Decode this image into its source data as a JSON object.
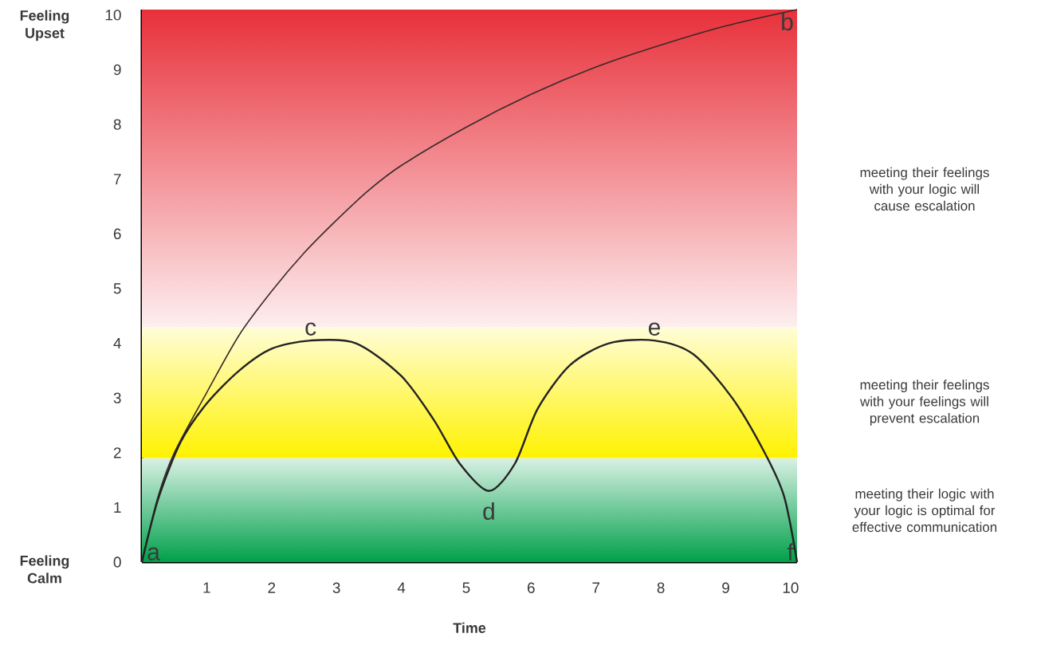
{
  "chart_data": {
    "type": "line",
    "xlabel": "Time",
    "xlim": [
      0,
      10.1
    ],
    "ylim": [
      0,
      10.1
    ],
    "xticks": [
      1,
      2,
      3,
      4,
      5,
      6,
      7,
      8,
      9,
      10
    ],
    "yticks": [
      0,
      1,
      2,
      3,
      4,
      5,
      6,
      7,
      8,
      9,
      10
    ],
    "series": [
      {
        "color": "#3a2a2a",
        "x": [
          0,
          0.25,
          0.5,
          1,
          1.5,
          2,
          2.5,
          3,
          3.5,
          4,
          5,
          6,
          7,
          8,
          9,
          10.1
        ],
        "values": [
          0,
          1.2,
          2.0,
          3.1,
          4.15,
          4.95,
          5.65,
          6.25,
          6.8,
          7.25,
          7.95,
          8.55,
          9.05,
          9.45,
          9.8,
          10.1
        ]
      },
      {
        "color": "#222222",
        "x": [
          0,
          0.25,
          0.6,
          1,
          1.5,
          2,
          2.6,
          3.3,
          4,
          4.5,
          4.9,
          5.35,
          5.75,
          6.1,
          6.6,
          7.2,
          7.9,
          8.5,
          9.1,
          9.6,
          9.9,
          10.1
        ],
        "values": [
          0,
          1.15,
          2.2,
          2.9,
          3.5,
          3.9,
          4.05,
          4.0,
          3.4,
          2.6,
          1.8,
          1.3,
          1.8,
          2.8,
          3.6,
          4.0,
          4.05,
          3.8,
          3.0,
          2.0,
          1.2,
          0
        ]
      }
    ],
    "bands": [
      {
        "axis": "y",
        "from": 4.3,
        "to": 10.1,
        "color": "#e8303a"
      },
      {
        "axis": "y",
        "from": 1.9,
        "to": 4.3,
        "color": "#fff200"
      },
      {
        "axis": "y",
        "from": 0,
        "to": 1.9,
        "color": "#00a04a"
      }
    ],
    "annotations": [
      "Feeling Upset",
      "Feeling Calm",
      "meeting their feelings with your logic will cause escalation",
      "meeting their feelings with your feelings will prevent escalation",
      "meeting their logic with your logic is optimal for effective communication",
      {
        "text": "a",
        "x": 0,
        "y": 0
      },
      {
        "text": "b",
        "x": 10.1,
        "y": 10.1
      },
      {
        "text": "c",
        "x": 2.6,
        "y": 4.05
      },
      {
        "text": "d",
        "x": 5.35,
        "y": 1.3
      },
      {
        "text": "e",
        "x": 7.9,
        "y": 4.05
      },
      {
        "text": "f",
        "x": 10.1,
        "y": 0
      }
    ],
    "grid": false,
    "marker": "none",
    "line_style": "solid"
  }
}
